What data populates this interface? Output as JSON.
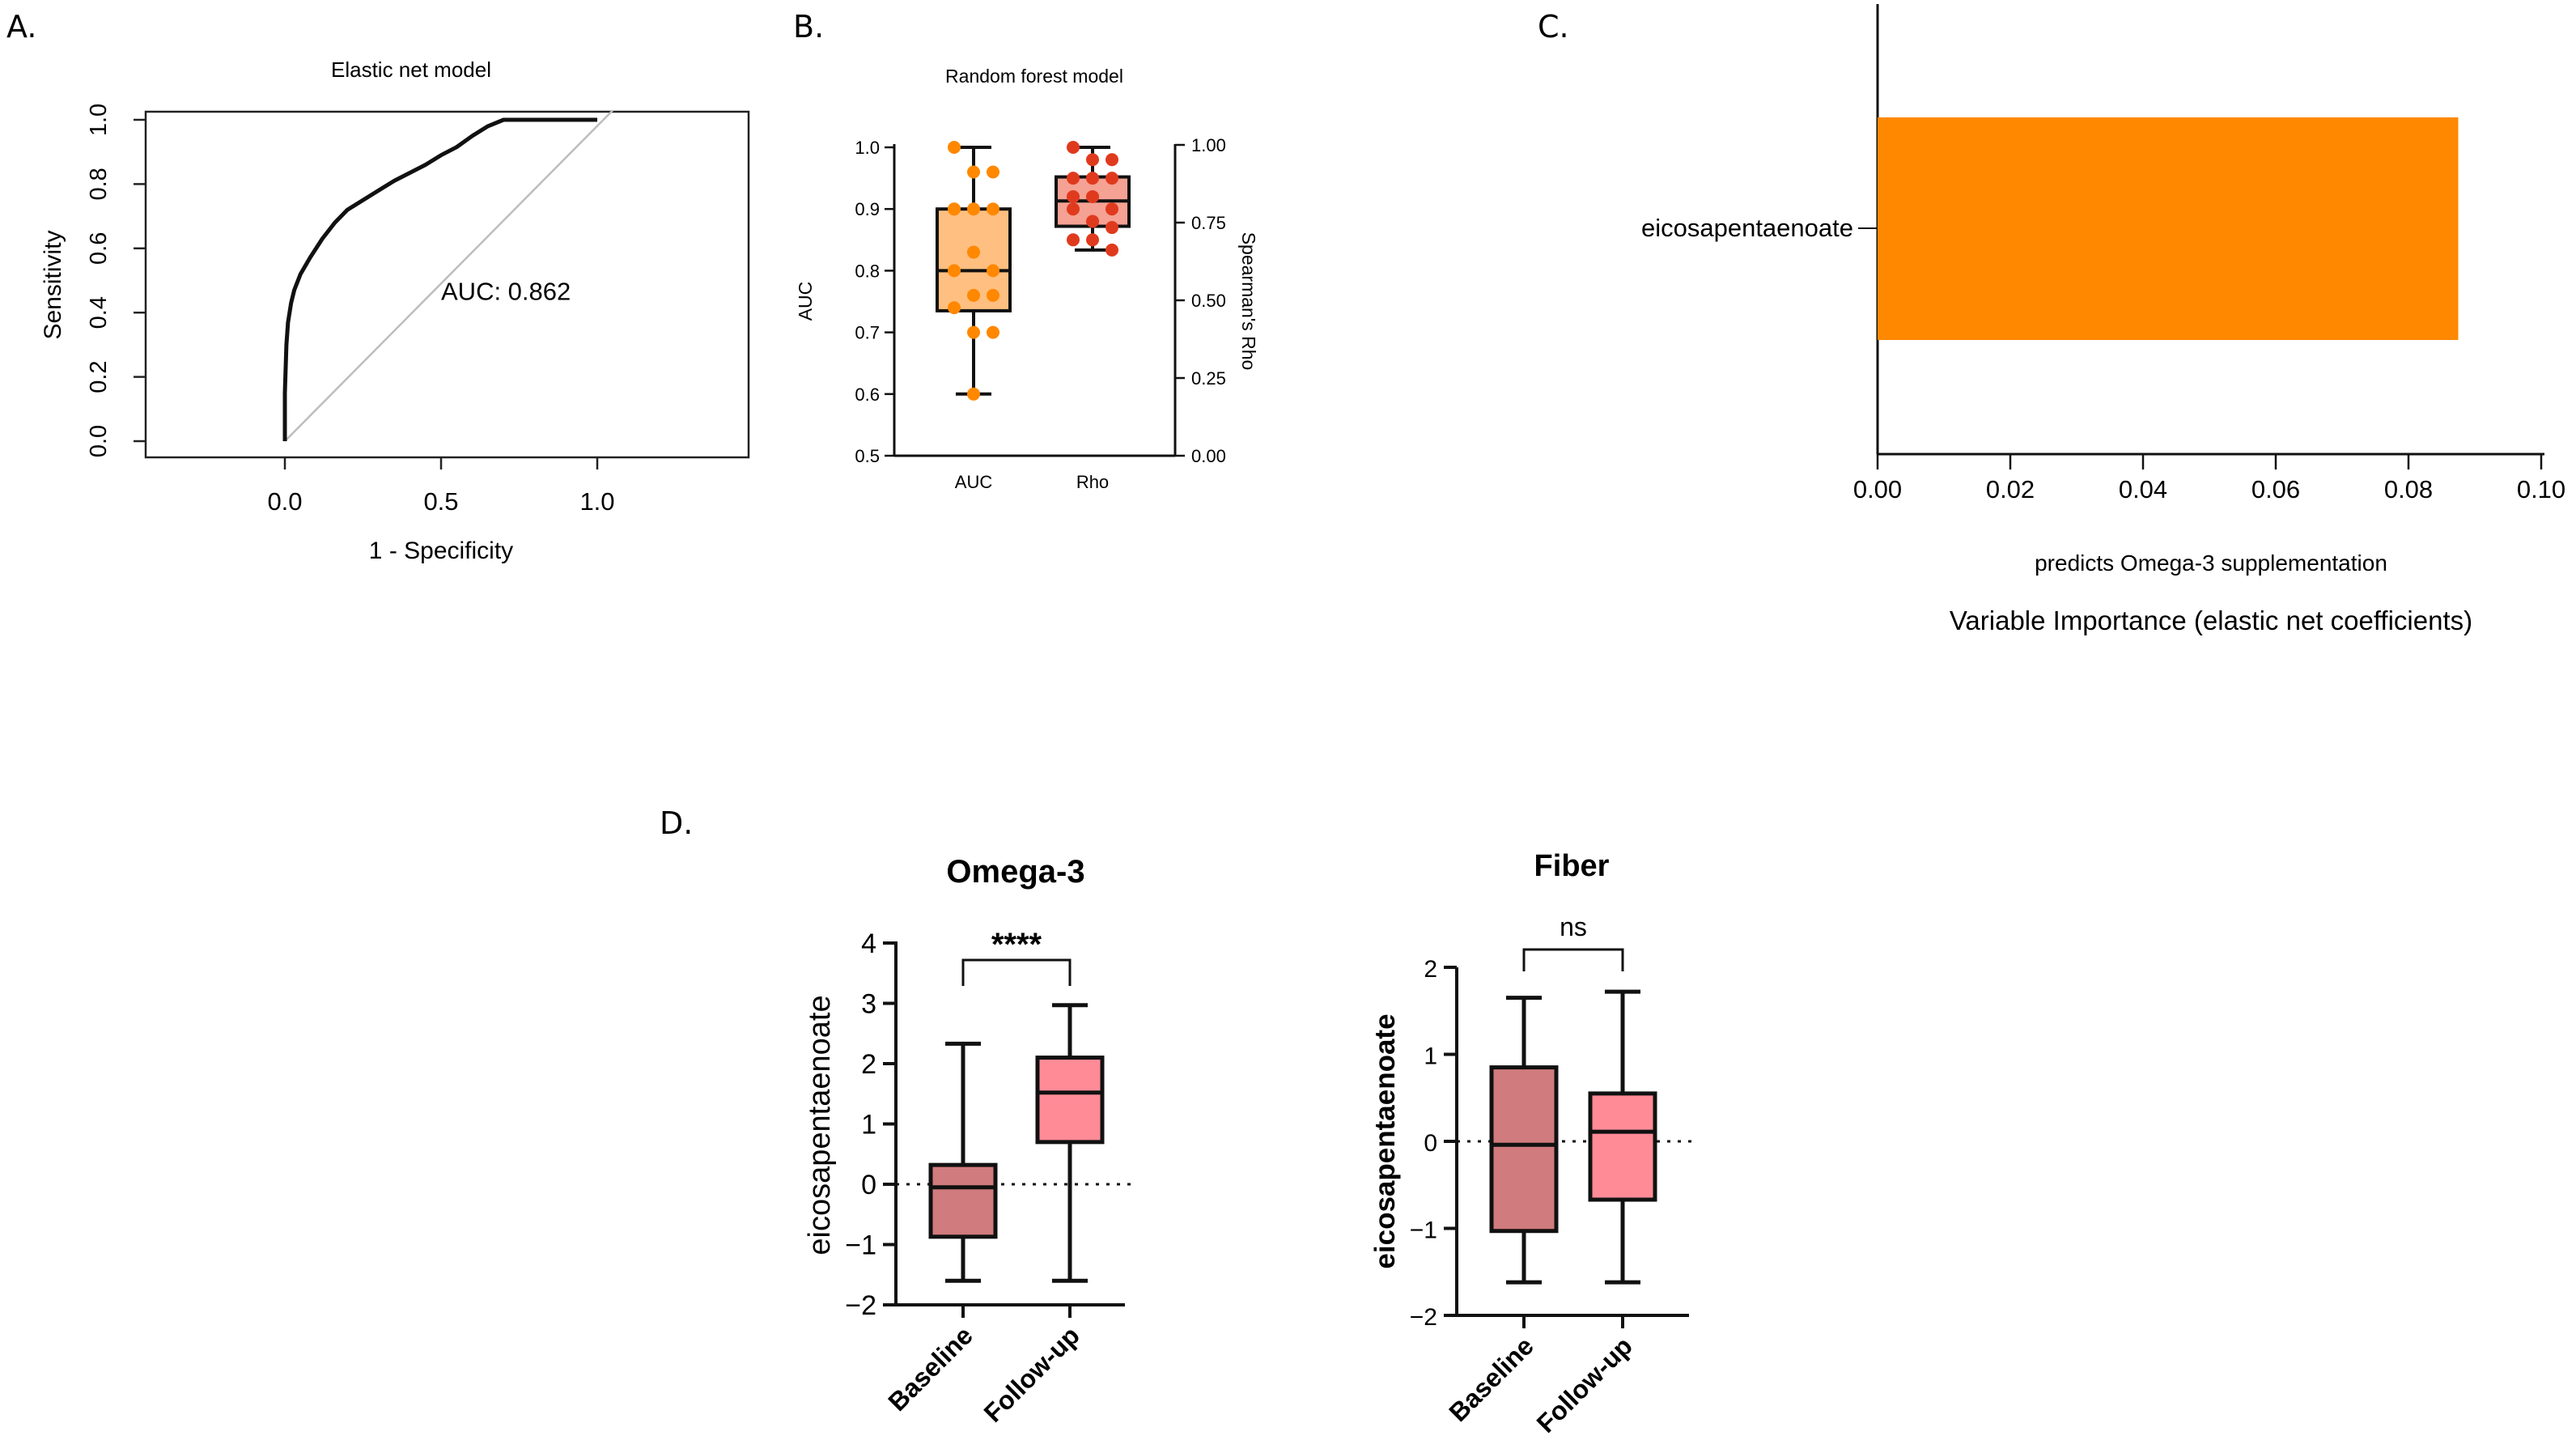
{
  "panels": {
    "a": {
      "letter": "A."
    },
    "b": {
      "letter": "B."
    },
    "c": {
      "letter": "C."
    },
    "d": {
      "letter": "D."
    }
  },
  "colors": {
    "orange": "#ff8800",
    "orange_fill": "#ffbf80",
    "red_dot": "#e03a1e",
    "salmon_fill": "#f5a193",
    "baseline_fill": "#d07b7d",
    "followup_fill": "#ff8b97"
  },
  "chart_data": [
    {
      "panel": "A",
      "type": "line",
      "title": "Elastic net model",
      "xlabel": "1 - Specificity",
      "ylabel": "Sensitivity",
      "xlim": [
        -0.5,
        1.5
      ],
      "ylim": [
        0,
        1
      ],
      "xticks": [
        0.0,
        0.5,
        1.0
      ],
      "yticks": [
        0.0,
        0.2,
        0.4,
        0.6,
        0.8,
        1.0
      ],
      "annotation": "AUC: 0.862",
      "series": [
        {
          "name": "ROC",
          "x": [
            0,
            0,
            0.005,
            0.01,
            0.02,
            0.03,
            0.05,
            0.08,
            0.12,
            0.16,
            0.2,
            0.25,
            0.3,
            0.35,
            0.4,
            0.45,
            0.5,
            0.55,
            0.6,
            0.65,
            0.7,
            0.72,
            0.8,
            0.9,
            1.0
          ],
          "y": [
            0,
            0.15,
            0.3,
            0.37,
            0.43,
            0.47,
            0.52,
            0.57,
            0.63,
            0.68,
            0.72,
            0.75,
            0.78,
            0.81,
            0.835,
            0.86,
            0.89,
            0.915,
            0.95,
            0.98,
            1.0,
            1.0,
            1.0,
            1.0,
            1.0
          ]
        },
        {
          "name": "reference",
          "x": [
            0,
            1.05
          ],
          "y": [
            0,
            1.03
          ]
        }
      ]
    },
    {
      "panel": "B",
      "type": "box",
      "title": "Random forest model",
      "categories": [
        "AUC",
        "Rho"
      ],
      "ylabel": "AUC",
      "ylim": [
        0.5,
        1.0
      ],
      "yticks": [
        "0.5",
        "0.6",
        "0.7",
        "0.8",
        "0.9",
        "1.0"
      ],
      "y2label": "Spearman's Rho",
      "y2lim": [
        0,
        1
      ],
      "y2ticks": [
        "0.00",
        "0.25",
        "0.50",
        "0.75",
        "1.00"
      ],
      "boxes": [
        {
          "name": "AUC",
          "min": 0.6,
          "q1": 0.735,
          "median": 0.8,
          "q3": 0.9,
          "max": 1.0,
          "points": [
            1.0,
            0.96,
            0.96,
            0.9,
            0.9,
            0.9,
            0.9,
            0.83,
            0.8,
            0.8,
            0.76,
            0.76,
            0.74,
            0.7,
            0.7,
            0.6
          ]
        },
        {
          "name": "Rho",
          "min": 0.667,
          "q1": 0.744,
          "median": 0.826,
          "q3": 0.904,
          "max": 1.0,
          "points": [
            1.0,
            0.96,
            0.96,
            0.9,
            0.9,
            0.9,
            0.84,
            0.84,
            0.8,
            0.8,
            0.76,
            0.74,
            0.7,
            0.7,
            0.667
          ]
        }
      ]
    },
    {
      "panel": "C",
      "type": "bar",
      "orientation": "horizontal",
      "categories": [
        "eicosapentaenoate"
      ],
      "values": [
        0.0875
      ],
      "xlim": [
        0,
        0.1
      ],
      "xticks": [
        "0.00",
        "0.02",
        "0.04",
        "0.06",
        "0.08",
        "0.10"
      ],
      "xlabel": "predicts Omega-3 supplementation",
      "xlabel2": "Variable Importance (elastic net coefficients)"
    },
    {
      "panel": "D1",
      "type": "box",
      "title": "Omega-3",
      "categories": [
        "Baseline",
        "Follow-up"
      ],
      "ylabel": "eicosapentaenoate",
      "ylim": [
        -2,
        4
      ],
      "yticks": [
        "−2",
        "−1",
        "0",
        "1",
        "2",
        "3",
        "4"
      ],
      "significance": "****",
      "boxes": [
        {
          "name": "Baseline",
          "min": -1.6,
          "q1": -0.87,
          "median": -0.05,
          "q3": 0.32,
          "max": 2.33
        },
        {
          "name": "Follow-up",
          "min": -1.6,
          "q1": 0.7,
          "median": 1.52,
          "q3": 2.1,
          "max": 2.97
        }
      ]
    },
    {
      "panel": "D2",
      "type": "box",
      "title": "Fiber",
      "categories": [
        "Baseline",
        "Follow-up"
      ],
      "ylabel": "eicosapentaenoate",
      "ylim": [
        -2,
        2
      ],
      "yticks": [
        "−2",
        "−1",
        "0",
        "1",
        "2"
      ],
      "significance": "ns",
      "boxes": [
        {
          "name": "Baseline",
          "min": -1.62,
          "q1": -1.03,
          "median": -0.04,
          "q3": 0.85,
          "max": 1.65
        },
        {
          "name": "Follow-up",
          "min": -1.62,
          "q1": -0.67,
          "median": 0.11,
          "q3": 0.55,
          "max": 1.72
        }
      ]
    }
  ]
}
